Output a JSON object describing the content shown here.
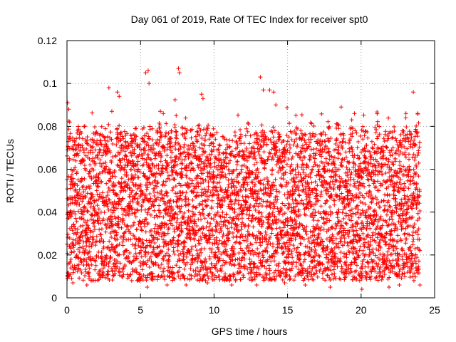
{
  "chart_data": {
    "type": "scatter",
    "title": "Day 061 of 2019, Rate Of TEC Index for receiver spt0",
    "xlabel": "GPS time / hours",
    "ylabel": "ROTI / TECUs",
    "xlim": [
      0,
      25
    ],
    "ylim": [
      0,
      0.12
    ],
    "xticks": [
      0,
      5,
      10,
      15,
      20,
      25
    ],
    "xtick_labels": [
      "0",
      "5",
      "10",
      "15",
      "20",
      "25"
    ],
    "yticks": [
      0,
      0.02,
      0.04,
      0.06,
      0.08,
      0.1,
      0.12
    ],
    "ytick_labels": [
      "0",
      "0.02",
      "0.04",
      "0.06",
      "0.08",
      "0.1",
      "0.12"
    ],
    "grid": true,
    "marker": "+",
    "series": [
      {
        "name": "ROTI spt0",
        "color": "#ff0000",
        "x_range": [
          0,
          24
        ],
        "typical_band": [
          0.01,
          0.07
        ],
        "x": [
          0.05,
          0.12,
          0.18,
          2.85,
          3.05,
          3.42,
          3.55,
          5.35,
          5.52,
          5.58,
          6.35,
          6.55,
          7.58,
          7.65,
          9.15,
          9.25,
          13.15,
          13.35,
          13.78,
          14.05,
          14.2,
          18.65,
          19.55,
          23.05,
          23.55,
          23.85,
          20.05,
          1.35,
          5.45,
          6.8,
          9.55,
          11.2,
          12.9,
          16.2,
          17.9,
          21.9,
          24.0,
          0.4,
          4.4,
          8.1,
          14.8,
          22.6
        ],
        "y": [
          0.091,
          0.088,
          0.082,
          0.098,
          0.087,
          0.096,
          0.094,
          0.105,
          0.106,
          0.1,
          0.087,
          0.086,
          0.107,
          0.105,
          0.095,
          0.093,
          0.103,
          0.097,
          0.097,
          0.096,
          0.09,
          0.089,
          0.086,
          0.086,
          0.096,
          0.086,
          0.004,
          0.006,
          0.005,
          0.006,
          0.007,
          0.006,
          0.006,
          0.006,
          0.005,
          0.005,
          0.006,
          0.007,
          0.008,
          0.006,
          0.007,
          0.006
        ]
      }
    ]
  }
}
